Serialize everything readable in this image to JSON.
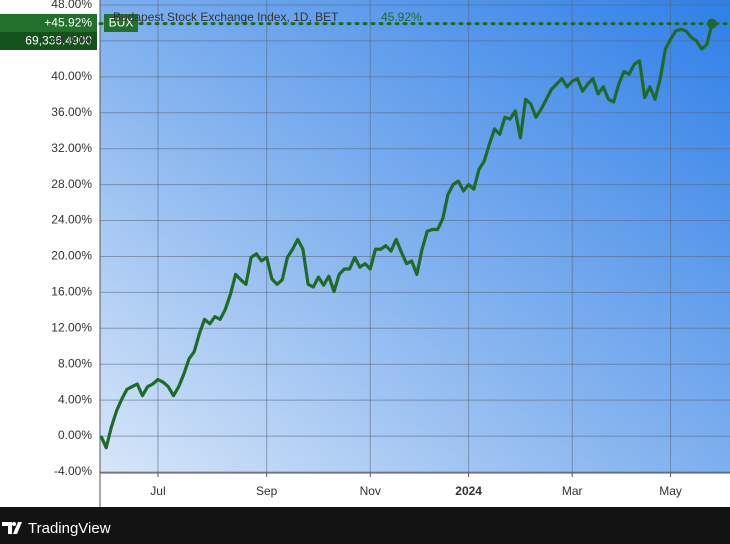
{
  "chart_data": {
    "type": "line",
    "series": [
      {
        "name": "Budapest Stock Exchange Index, 1D, BET",
        "color": "#1f6a26",
        "last_value_label": "45.92%",
        "values": [
          0.0,
          -1.3,
          1.0,
          2.8,
          4.1,
          5.2,
          5.5,
          5.8,
          4.5,
          5.5,
          5.8,
          6.3,
          6.0,
          5.5,
          4.5,
          5.5,
          6.9,
          8.6,
          9.4,
          11.4,
          13.0,
          12.5,
          13.3,
          13.0,
          14.1,
          15.8,
          18.0,
          17.4,
          16.9,
          19.9,
          20.3,
          19.5,
          19.9,
          17.5,
          16.9,
          17.4,
          19.9,
          20.8,
          21.9,
          20.8,
          16.9,
          16.6,
          17.7,
          16.8,
          17.8,
          16.1,
          18.0,
          18.6,
          18.6,
          19.9,
          18.8,
          19.2,
          18.6,
          20.8,
          20.8,
          21.2,
          20.6,
          21.9,
          20.5,
          19.2,
          19.5,
          18.0,
          20.8,
          22.8,
          23.0,
          23.0,
          24.2,
          26.9,
          28.0,
          28.4,
          27.3,
          28.0,
          27.5,
          29.7,
          30.6,
          32.5,
          34.2,
          33.6,
          35.5,
          35.3,
          36.2,
          33.2,
          37.5,
          37.0,
          35.5,
          36.4,
          37.5,
          38.6,
          39.2,
          39.8,
          38.9,
          39.5,
          39.8,
          38.4,
          39.2,
          39.8,
          38.1,
          38.9,
          37.5,
          37.2,
          39.2,
          40.6,
          40.3,
          41.4,
          41.8,
          37.7,
          38.9,
          37.5,
          39.8,
          43.1,
          44.2,
          45.1,
          45.3,
          45.1,
          44.4,
          44.0,
          43.1,
          43.6,
          45.92
        ]
      }
    ],
    "categories": [
      null,
      null,
      null,
      null,
      null,
      null,
      null,
      null,
      null,
      null,
      null,
      "Jul",
      null,
      null,
      null,
      null,
      null,
      null,
      null,
      null,
      null,
      null,
      null,
      null,
      null,
      null,
      null,
      null,
      null,
      null,
      null,
      null,
      "Sep",
      null,
      null,
      null,
      null,
      null,
      null,
      null,
      null,
      null,
      null,
      null,
      null,
      null,
      null,
      null,
      null,
      null,
      null,
      null,
      "Nov",
      null,
      null,
      null,
      null,
      null,
      null,
      null,
      null,
      null,
      null,
      null,
      null,
      null,
      null,
      null,
      null,
      null,
      null,
      "2024",
      null,
      null,
      null,
      null,
      null,
      null,
      null,
      null,
      null,
      null,
      null,
      null,
      null,
      null,
      null,
      null,
      null,
      null,
      null,
      "Mar",
      null,
      null,
      null,
      null,
      null,
      null,
      null,
      null,
      null,
      null,
      null,
      null,
      null,
      null,
      null,
      null,
      null,
      null,
      "May",
      null,
      null,
      null,
      null,
      null,
      null,
      null,
      null
    ],
    "ylim": [
      -4,
      48
    ],
    "yticks": [
      {
        "value": 48,
        "label": "48.00%"
      },
      {
        "value": 44,
        "label": "44.00%"
      },
      {
        "value": 40,
        "label": "40.00%"
      },
      {
        "value": 36,
        "label": "36.00%"
      },
      {
        "value": 32,
        "label": "32.00%"
      },
      {
        "value": 28,
        "label": "28.00%"
      },
      {
        "value": 24,
        "label": "24.00%"
      },
      {
        "value": 20,
        "label": "20.00%"
      },
      {
        "value": 16,
        "label": "16.00%"
      },
      {
        "value": 12,
        "label": "12.00%"
      },
      {
        "value": 8,
        "label": "8.00%"
      },
      {
        "value": 4,
        "label": "4.00%"
      },
      {
        "value": 0,
        "label": "0.00%"
      },
      {
        "value": -4,
        "label": "-4.00%"
      }
    ],
    "grid": true,
    "badge": {
      "change": "+45.92%",
      "price": "69,336.4900",
      "symbol": "BUX"
    },
    "footer": {
      "brand": "TradingView"
    }
  }
}
